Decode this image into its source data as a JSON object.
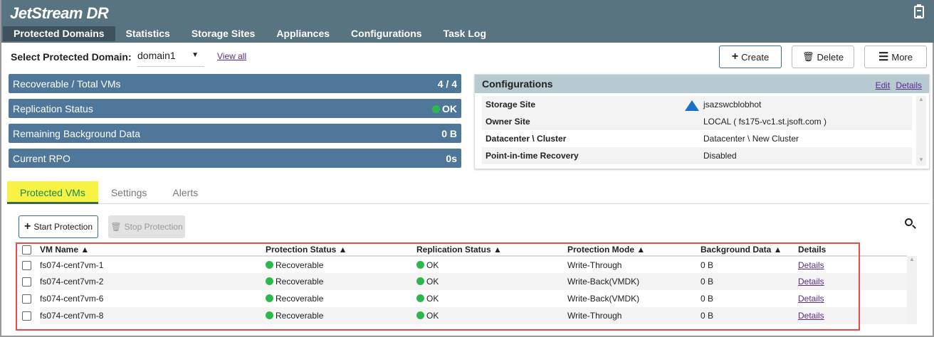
{
  "app": {
    "title": "JetStream DR"
  },
  "nav": [
    "Protected Domains",
    "Statistics",
    "Storage Sites",
    "Appliances",
    "Configurations",
    "Task Log"
  ],
  "domain": {
    "label": "Select Protected Domain:",
    "value": "domain1",
    "view_all": "View all"
  },
  "actions": {
    "create": "Create",
    "delete": "Delete",
    "more": "More"
  },
  "stats": [
    {
      "label": "Recoverable / Total VMs",
      "value": "4 / 4"
    },
    {
      "label": "Replication Status",
      "value": "OK"
    },
    {
      "label": "Remaining Background Data",
      "value": "0 B"
    },
    {
      "label": "Current RPO",
      "value": "0s"
    }
  ],
  "config": {
    "title": "Configurations",
    "edit": "Edit",
    "details": "Details",
    "rows": [
      {
        "key": "Storage Site",
        "value": "jsazswcblobhot"
      },
      {
        "key": "Owner Site",
        "value": "LOCAL ( fs175-vc1.st.jsoft.com )"
      },
      {
        "key": "Datacenter \\ Cluster",
        "value": "Datacenter \\ New Cluster"
      },
      {
        "key": "Point-in-time Recovery",
        "value": "Disabled"
      }
    ]
  },
  "tabs": [
    "Protected VMs",
    "Settings",
    "Alerts"
  ],
  "vm_actions": {
    "start": "Start Protection",
    "stop": "Stop Protection"
  },
  "table": {
    "headers": [
      "VM Name ▲",
      "Protection Status ▲",
      "Replication Status ▲",
      "Protection Mode ▲",
      "Background Data ▲",
      "Details"
    ],
    "rows": [
      {
        "name": "fs074-cent7vm-1",
        "prot": "Recoverable",
        "rep": "OK",
        "mode": "Write-Through",
        "bg": "0 B",
        "details": "Details"
      },
      {
        "name": "fs074-cent7vm-2",
        "prot": "Recoverable",
        "rep": "OK",
        "mode": "Write-Back(VMDK)",
        "bg": "0 B",
        "details": "Details"
      },
      {
        "name": "fs074-cent7vm-6",
        "prot": "Recoverable",
        "rep": "OK",
        "mode": "Write-Back(VMDK)",
        "bg": "0 B",
        "details": "Details"
      },
      {
        "name": "fs074-cent7vm-8",
        "prot": "Recoverable",
        "rep": "OK",
        "mode": "Write-Through",
        "bg": "0 B",
        "details": "Details"
      }
    ]
  },
  "colors": {
    "header": "#587480",
    "stat_bar": "#4f7799",
    "ok": "#2db84b",
    "highlight": "#f04848",
    "active_tab": "#f7f246"
  }
}
